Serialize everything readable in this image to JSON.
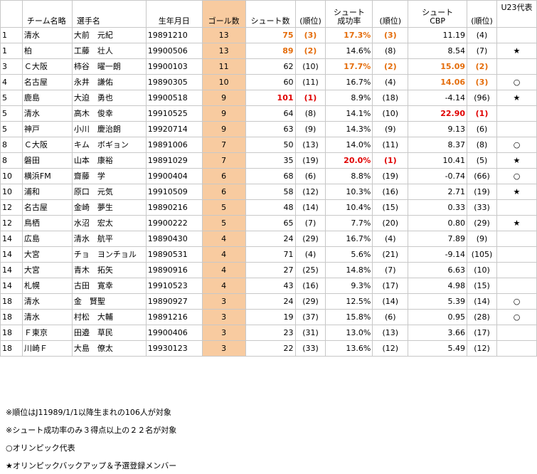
{
  "headers": {
    "rank": "",
    "team": "チーム名略",
    "player": "選手名",
    "dob": "生年月日",
    "goals": "ゴール数",
    "shots": "シュート数",
    "shots_rank": "(順位)",
    "rate_l1": "シュート",
    "rate_l2": "成功率",
    "rate_rank": "(順位)",
    "cbp_l1": "シュート",
    "cbp_l2": "CBP",
    "cbp_rank": "(順位)",
    "u23": "U23代表"
  },
  "rows": [
    {
      "rank": "1",
      "team": "清水",
      "player": "大前　元紀",
      "dob": "19891210",
      "goals": "13",
      "shots": "75",
      "shots_rank": "(3)",
      "rate": "17.3%",
      "rate_rank": "(3)",
      "cbp": "11.19",
      "cbp_rank": "(4)",
      "u23": ""
    },
    {
      "rank": "1",
      "team": "柏",
      "player": "工藤　壮人",
      "dob": "19900506",
      "goals": "13",
      "shots": "89",
      "shots_rank": "(2)",
      "rate": "14.6%",
      "rate_rank": "(8)",
      "cbp": "8.54",
      "cbp_rank": "(7)",
      "u23": "★"
    },
    {
      "rank": "3",
      "team": "Ｃ大阪",
      "player": "柿谷　曜一朗",
      "dob": "19900103",
      "goals": "11",
      "shots": "62",
      "shots_rank": "(10)",
      "rate": "17.7%",
      "rate_rank": "(2)",
      "cbp": "15.09",
      "cbp_rank": "(2)",
      "u23": ""
    },
    {
      "rank": "4",
      "team": "名古屋",
      "player": "永井　謙佑",
      "dob": "19890305",
      "goals": "10",
      "shots": "60",
      "shots_rank": "(11)",
      "rate": "16.7%",
      "rate_rank": "(4)",
      "cbp": "14.06",
      "cbp_rank": "(3)",
      "u23": "○"
    },
    {
      "rank": "5",
      "team": "鹿島",
      "player": "大迫　勇也",
      "dob": "19900518",
      "goals": "9",
      "shots": "101",
      "shots_rank": "(1)",
      "rate": "8.9%",
      "rate_rank": "(18)",
      "cbp": "-4.14",
      "cbp_rank": "(96)",
      "u23": "★"
    },
    {
      "rank": "5",
      "team": "清水",
      "player": "高木　俊幸",
      "dob": "19910525",
      "goals": "9",
      "shots": "64",
      "shots_rank": "(8)",
      "rate": "14.1%",
      "rate_rank": "(10)",
      "cbp": "22.90",
      "cbp_rank": "(1)",
      "u23": ""
    },
    {
      "rank": "5",
      "team": "神戸",
      "player": "小川　慶治朗",
      "dob": "19920714",
      "goals": "9",
      "shots": "63",
      "shots_rank": "(9)",
      "rate": "14.3%",
      "rate_rank": "(9)",
      "cbp": "9.13",
      "cbp_rank": "(6)",
      "u23": ""
    },
    {
      "rank": "8",
      "team": "Ｃ大阪",
      "player": "キム　ボギョン",
      "dob": "19891006",
      "goals": "7",
      "shots": "50",
      "shots_rank": "(13)",
      "rate": "14.0%",
      "rate_rank": "(11)",
      "cbp": "8.37",
      "cbp_rank": "(8)",
      "u23": "○"
    },
    {
      "rank": "8",
      "team": "磐田",
      "player": "山本　康裕",
      "dob": "19891029",
      "goals": "7",
      "shots": "35",
      "shots_rank": "(19)",
      "rate": "20.0%",
      "rate_rank": "(1)",
      "cbp": "10.41",
      "cbp_rank": "(5)",
      "u23": "★"
    },
    {
      "rank": "10",
      "team": "横浜FM",
      "player": "齋藤　学",
      "dob": "19900404",
      "goals": "6",
      "shots": "68",
      "shots_rank": "(6)",
      "rate": "8.8%",
      "rate_rank": "(19)",
      "cbp": "-0.74",
      "cbp_rank": "(66)",
      "u23": "○"
    },
    {
      "rank": "10",
      "team": "浦和",
      "player": "原口　元気",
      "dob": "19910509",
      "goals": "6",
      "shots": "58",
      "shots_rank": "(12)",
      "rate": "10.3%",
      "rate_rank": "(16)",
      "cbp": "2.71",
      "cbp_rank": "(19)",
      "u23": "★"
    },
    {
      "rank": "12",
      "team": "名古屋",
      "player": "金崎　夢生",
      "dob": "19890216",
      "goals": "5",
      "shots": "48",
      "shots_rank": "(14)",
      "rate": "10.4%",
      "rate_rank": "(15)",
      "cbp": "0.33",
      "cbp_rank": "(33)",
      "u23": ""
    },
    {
      "rank": "12",
      "team": "鳥栖",
      "player": "水沼　宏太",
      "dob": "19900222",
      "goals": "5",
      "shots": "65",
      "shots_rank": "(7)",
      "rate": "7.7%",
      "rate_rank": "(20)",
      "cbp": "0.80",
      "cbp_rank": "(29)",
      "u23": "★"
    },
    {
      "rank": "14",
      "team": "広島",
      "player": "清水　航平",
      "dob": "19890430",
      "goals": "4",
      "shots": "24",
      "shots_rank": "(29)",
      "rate": "16.7%",
      "rate_rank": "(4)",
      "cbp": "7.89",
      "cbp_rank": "(9)",
      "u23": ""
    },
    {
      "rank": "14",
      "team": "大宮",
      "player": "チョ　ヨンチョル",
      "dob": "19890531",
      "goals": "4",
      "shots": "71",
      "shots_rank": "(4)",
      "rate": "5.6%",
      "rate_rank": "(21)",
      "cbp": "-9.14",
      "cbp_rank": "(105)",
      "u23": ""
    },
    {
      "rank": "14",
      "team": "大宮",
      "player": "青木　拓矢",
      "dob": "19890916",
      "goals": "4",
      "shots": "27",
      "shots_rank": "(25)",
      "rate": "14.8%",
      "rate_rank": "(7)",
      "cbp": "6.63",
      "cbp_rank": "(10)",
      "u23": ""
    },
    {
      "rank": "14",
      "team": "札幌",
      "player": "古田　寛幸",
      "dob": "19910523",
      "goals": "4",
      "shots": "43",
      "shots_rank": "(16)",
      "rate": "9.3%",
      "rate_rank": "(17)",
      "cbp": "4.98",
      "cbp_rank": "(15)",
      "u23": ""
    },
    {
      "rank": "18",
      "team": "清水",
      "player": "金　賢聖",
      "dob": "19890927",
      "goals": "3",
      "shots": "24",
      "shots_rank": "(29)",
      "rate": "12.5%",
      "rate_rank": "(14)",
      "cbp": "5.39",
      "cbp_rank": "(14)",
      "u23": "○"
    },
    {
      "rank": "18",
      "team": "清水",
      "player": "村松　大輔",
      "dob": "19891216",
      "goals": "3",
      "shots": "19",
      "shots_rank": "(37)",
      "rate": "15.8%",
      "rate_rank": "(6)",
      "cbp": "0.95",
      "cbp_rank": "(28)",
      "u23": "○"
    },
    {
      "rank": "18",
      "team": "Ｆ東京",
      "player": "田邉　草民",
      "dob": "19900406",
      "goals": "3",
      "shots": "23",
      "shots_rank": "(31)",
      "rate": "13.0%",
      "rate_rank": "(13)",
      "cbp": "3.66",
      "cbp_rank": "(17)",
      "u23": ""
    },
    {
      "rank": "18",
      "team": "川崎Ｆ",
      "player": "大島　僚太",
      "dob": "19930123",
      "goals": "3",
      "shots": "22",
      "shots_rank": "(33)",
      "rate": "13.6%",
      "rate_rank": "(12)",
      "cbp": "5.49",
      "cbp_rank": "(12)",
      "u23": ""
    }
  ],
  "highlights": {
    "orange": [
      [
        0,
        "shots"
      ],
      [
        0,
        "shots_rank"
      ],
      [
        0,
        "rate"
      ],
      [
        0,
        "rate_rank"
      ],
      [
        1,
        "shots"
      ],
      [
        1,
        "shots_rank"
      ],
      [
        2,
        "rate"
      ],
      [
        2,
        "rate_rank"
      ],
      [
        2,
        "cbp"
      ],
      [
        2,
        "cbp_rank"
      ],
      [
        3,
        "cbp"
      ],
      [
        3,
        "cbp_rank"
      ]
    ],
    "red": [
      [
        4,
        "shots"
      ],
      [
        4,
        "shots_rank"
      ],
      [
        5,
        "cbp"
      ],
      [
        5,
        "cbp_rank"
      ],
      [
        8,
        "rate"
      ],
      [
        8,
        "rate_rank"
      ]
    ]
  },
  "colors": {
    "goal_column_bg": "#f8cba0",
    "orange_text": "#e46c0a",
    "red_text": "#e00000"
  },
  "notes": [
    "※順位はJ11989/1/1以降生まれの106人が対象",
    "※シュート成功率のみ３得点以上の２２名が対象",
    "○オリンピック代表",
    "★オリンピックバックアップ＆予選登録メンバー"
  ]
}
